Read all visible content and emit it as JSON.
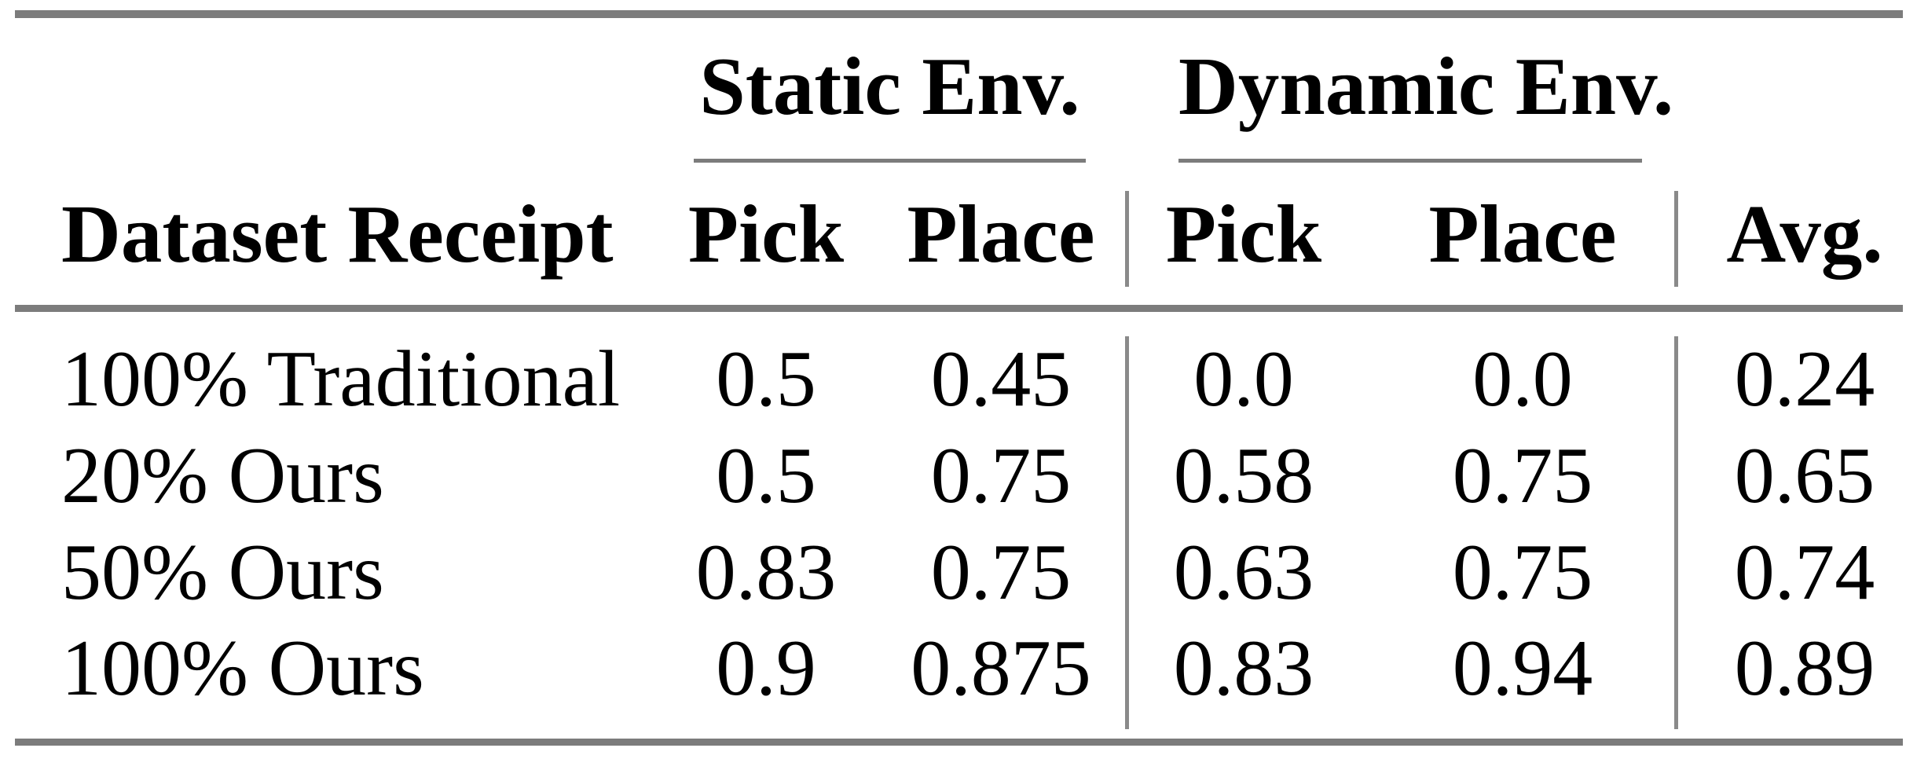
{
  "table": {
    "group_headers": [
      {
        "label": "Static Env."
      },
      {
        "label": "Dynamic Env."
      }
    ],
    "columns": {
      "row_header": "Dataset Receipt",
      "static_pick": "Pick",
      "static_place": "Place",
      "dynamic_pick": "Pick",
      "dynamic_place": "Place",
      "avg": "Avg."
    },
    "rows": [
      {
        "label": "100% Traditional",
        "static_pick": "0.5",
        "static_place": "0.45",
        "dynamic_pick": "0.0",
        "dynamic_place": "0.0",
        "avg": "0.24"
      },
      {
        "label": "20% Ours",
        "static_pick": "0.5",
        "static_place": "0.75",
        "dynamic_pick": "0.58",
        "dynamic_place": "0.75",
        "avg": "0.65"
      },
      {
        "label": "50% Ours",
        "static_pick": "0.83",
        "static_place": "0.75",
        "dynamic_pick": "0.63",
        "dynamic_place": "0.75",
        "avg": "0.74"
      },
      {
        "label": "100% Ours",
        "static_pick": "0.9",
        "static_place": "0.875",
        "dynamic_pick": "0.83",
        "dynamic_place": "0.94",
        "avg": "0.89"
      }
    ]
  },
  "colors": {
    "background": "#ffffff",
    "text": "#000000",
    "rule": "#7c7c7c"
  }
}
